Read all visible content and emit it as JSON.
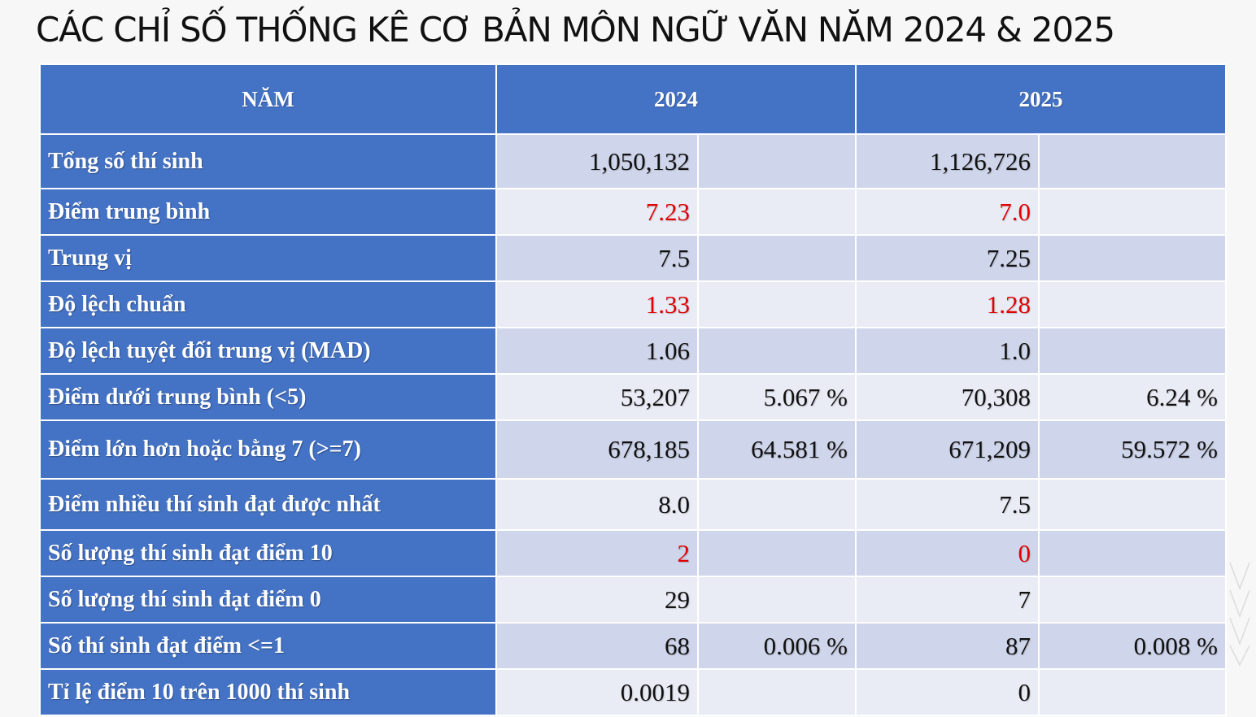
{
  "title": "CÁC CHỈ SỐ THỐNG KÊ CƠ BẢN MÔN NGỮ VĂN NĂM 2024 & 2025",
  "header": {
    "col_label": "NĂM",
    "year_a": "2024",
    "year_b": "2025"
  },
  "colors": {
    "header_bg": "#4472c4",
    "row_odd_bg": "#cfd5ea",
    "row_even_bg": "#e9ebf5",
    "highlight_text": "#e00000"
  },
  "rows": [
    {
      "label": "Tổng số thí sinh",
      "v2024": "1,050,132",
      "p2024": "",
      "v2025": "1,126,726",
      "p2025": "",
      "highlight": false
    },
    {
      "label": "Điểm trung bình",
      "v2024": "7.23",
      "p2024": "",
      "v2025": "7.0",
      "p2025": "",
      "highlight": true
    },
    {
      "label": "Trung vị",
      "v2024": "7.5",
      "p2024": "",
      "v2025": "7.25",
      "p2025": "",
      "highlight": false
    },
    {
      "label": "Độ lệch chuẩn",
      "v2024": "1.33",
      "p2024": "",
      "v2025": "1.28",
      "p2025": "",
      "highlight": true
    },
    {
      "label": "Độ lệch tuyệt đối trung vị (MAD)",
      "v2024": "1.06",
      "p2024": "",
      "v2025": "1.0",
      "p2025": "",
      "highlight": false
    },
    {
      "label": "Điểm dưới trung bình (<5)",
      "v2024": "53,207",
      "p2024": "5.067 %",
      "v2025": "70,308",
      "p2025": "6.24 %",
      "highlight": false
    },
    {
      "label": "Điểm lớn hơn hoặc bằng 7 (>=7)",
      "v2024": "678,185",
      "p2024": "64.581 %",
      "v2025": "671,209",
      "p2025": "59.572 %",
      "highlight": false
    },
    {
      "label": "Điểm nhiều thí sinh đạt được nhất",
      "v2024": "8.0",
      "p2024": "",
      "v2025": "7.5",
      "p2025": "",
      "highlight": false
    },
    {
      "label": "Số lượng thí sinh đạt điểm 10",
      "v2024": "2",
      "p2024": "",
      "v2025": "0",
      "p2025": "",
      "highlight": true
    },
    {
      "label": "Số lượng thí sinh đạt điểm 0",
      "v2024": "29",
      "p2024": "",
      "v2025": "7",
      "p2025": "",
      "highlight": false
    },
    {
      "label": "Số thí sinh đạt điểm <=1",
      "v2024": "68",
      "p2024": "0.006 %",
      "v2025": "87",
      "p2025": "0.008 %",
      "highlight": false
    },
    {
      "label": "Tỉ lệ điểm 10 trên 1000 thí sinh",
      "v2024": "0.0019",
      "p2024": "",
      "v2025": "0",
      "p2025": "",
      "highlight": false
    }
  ]
}
